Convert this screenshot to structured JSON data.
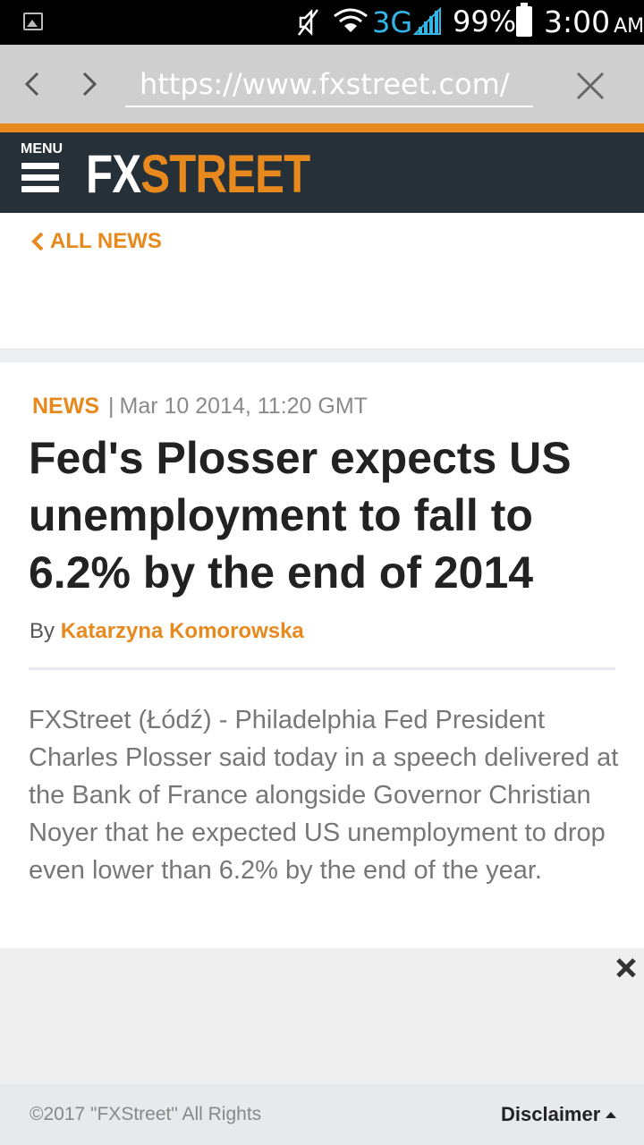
{
  "status_bar": {
    "network": "3G",
    "battery": "99%",
    "time": "3:00",
    "ampm": "AM"
  },
  "browser": {
    "url": "https://www.fxstreet.com/"
  },
  "header": {
    "menu_label": "MENU",
    "logo_fx": "FX",
    "logo_street": "STREET"
  },
  "nav": {
    "all_news": "ALL NEWS"
  },
  "article": {
    "category": "NEWS",
    "separator": "|",
    "date": "Mar 10 2014, 11:20 GMT",
    "headline": "Fed's Plosser expects US unemployment to fall to 6.2% by the end of 2014",
    "by_label": "By",
    "author": "Katarzyna Komorowska",
    "body": "FXStreet (Łódź) - Philadelphia Fed President Charles Plosser said today in a speech delivered at the Bank of France alongside Governor Christian Noyer that he expected US unemployment to drop even lower than 6.2% by the end of the year."
  },
  "footer": {
    "copyright": "©2017 \"FXStreet\" All Rights",
    "disclaimer": "Disclaimer"
  },
  "colors": {
    "accent": "#e8891d",
    "header_bg": "#263038"
  }
}
